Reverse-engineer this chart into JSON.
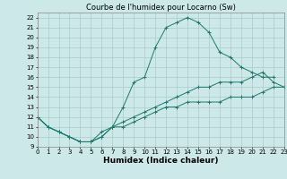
{
  "title": "Courbe de l'humidex pour Locarno (Sw)",
  "xlabel": "Humidex (Indice chaleur)",
  "xlim": [
    0,
    23
  ],
  "ylim": [
    9,
    22.5
  ],
  "xticks": [
    0,
    1,
    2,
    3,
    4,
    5,
    6,
    7,
    8,
    9,
    10,
    11,
    12,
    13,
    14,
    15,
    16,
    17,
    18,
    19,
    20,
    21,
    22,
    23
  ],
  "yticks": [
    9,
    10,
    11,
    12,
    13,
    14,
    15,
    16,
    17,
    18,
    19,
    20,
    21,
    22
  ],
  "line_color": "#1a7a6e",
  "bg_color": "#cce8e8",
  "grid_color": "#aacccc",
  "curve1_x": [
    0,
    1,
    2,
    3,
    4,
    5,
    6,
    7,
    8,
    9,
    10,
    11,
    12,
    13,
    14,
    15,
    16,
    17,
    18,
    19,
    20,
    21,
    22
  ],
  "curve1_y": [
    12,
    11,
    10.5,
    10,
    9.5,
    9.5,
    10,
    11,
    13,
    15.5,
    16,
    19,
    21,
    21.5,
    22,
    21.5,
    20.5,
    18.5,
    18,
    17,
    16.5,
    16,
    16
  ],
  "curve2_x": [
    0,
    1,
    2,
    3,
    4,
    5,
    6,
    7,
    8,
    9,
    10,
    11,
    12,
    13,
    14,
    15,
    16,
    17,
    18,
    19,
    20,
    21,
    22,
    23
  ],
  "curve2_y": [
    12,
    11,
    10.5,
    10,
    9.5,
    9.5,
    10.5,
    11,
    11.5,
    12,
    12.5,
    13,
    13.5,
    14,
    14.5,
    15,
    15,
    15.5,
    15.5,
    15.5,
    16,
    16.5,
    15.5,
    15
  ],
  "curve3_x": [
    0,
    1,
    2,
    3,
    4,
    5,
    6,
    7,
    8,
    9,
    10,
    11,
    12,
    13,
    14,
    15,
    16,
    17,
    18,
    19,
    20,
    21,
    22,
    23
  ],
  "curve3_y": [
    12,
    11,
    10.5,
    10,
    9.5,
    9.5,
    10,
    11,
    11,
    11.5,
    12,
    12.5,
    13,
    13,
    13.5,
    13.5,
    13.5,
    13.5,
    14,
    14,
    14,
    14.5,
    15,
    15
  ],
  "title_fontsize": 6,
  "tick_fontsize": 5,
  "xlabel_fontsize": 6.5
}
